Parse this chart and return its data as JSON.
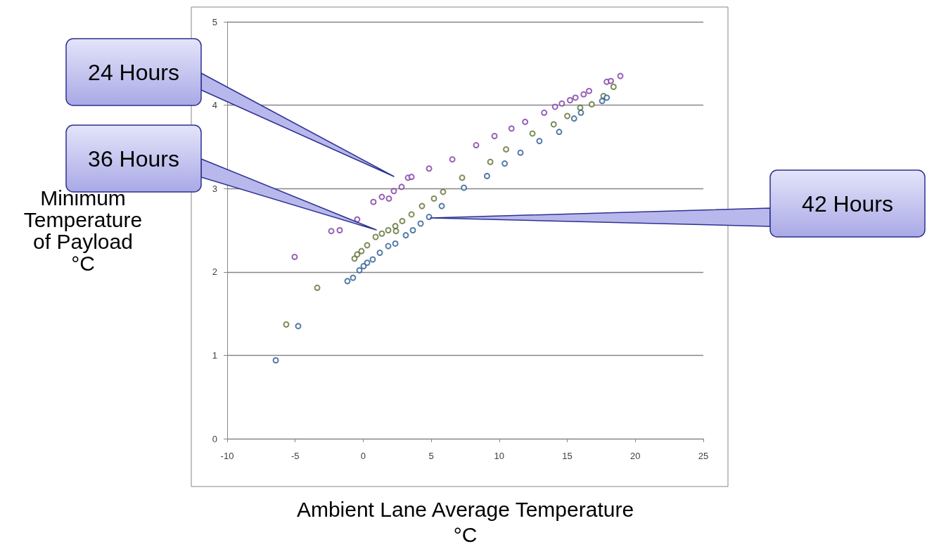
{
  "chart_data": {
    "type": "scatter",
    "xlabel": "Ambient Lane Average Temperature\n°C",
    "ylabel": "Minimum\nTemperature\nof Payload\n°C",
    "xlim": [
      -10,
      25
    ],
    "xticks": [
      -10,
      -5,
      0,
      5,
      10,
      15,
      20,
      25
    ],
    "ylim": [
      0,
      5
    ],
    "yticks": [
      0,
      1,
      2,
      3,
      4,
      5
    ],
    "grid": "y",
    "marker": "circle",
    "series": [
      {
        "color": "#7d3aa6",
        "x": [
          -5.04,
          -2.35,
          -1.73,
          -0.44,
          0.75,
          1.37,
          1.89,
          2.25,
          2.82,
          3.29,
          3.55,
          4.84,
          6.55,
          8.3,
          9.65,
          10.9,
          11.9,
          13.3,
          14.1,
          14.6,
          15.2,
          15.6,
          16.2,
          16.6,
          17.9,
          18.2,
          18.9
        ],
        "values": [
          2.18,
          2.49,
          2.5,
          2.63,
          2.84,
          2.9,
          2.88,
          2.97,
          3.02,
          3.13,
          3.14,
          3.24,
          3.35,
          3.52,
          3.63,
          3.72,
          3.8,
          3.91,
          3.98,
          4.02,
          4.06,
          4.09,
          4.13,
          4.17,
          4.28,
          4.29,
          4.35
        ]
      },
      {
        "color": "#5c7030",
        "x": [
          -5.66,
          -3.38,
          -0.64,
          -0.44,
          -0.13,
          0.29,
          0.91,
          1.37,
          1.84,
          2.36,
          2.41,
          2.87,
          3.55,
          4.32,
          5.2,
          5.87,
          7.27,
          9.34,
          10.5,
          12.44,
          14.0,
          15.0,
          15.95,
          16.8,
          17.66,
          18.4
        ],
        "values": [
          1.37,
          1.81,
          2.16,
          2.21,
          2.25,
          2.32,
          2.42,
          2.46,
          2.5,
          2.55,
          2.49,
          2.61,
          2.69,
          2.79,
          2.88,
          2.96,
          3.13,
          3.32,
          3.47,
          3.66,
          3.77,
          3.87,
          3.97,
          4.01,
          4.11,
          4.22
        ]
      },
      {
        "color": "#2b5b92",
        "x": [
          -6.43,
          -4.78,
          -1.16,
          -0.75,
          -0.28,
          0.03,
          0.29,
          0.7,
          1.22,
          1.84,
          2.36,
          3.13,
          3.65,
          4.22,
          4.84,
          5.77,
          7.4,
          9.1,
          10.4,
          11.56,
          12.95,
          14.4,
          15.5,
          16.0,
          17.56,
          17.9
        ],
        "values": [
          0.94,
          1.35,
          1.89,
          1.93,
          2.02,
          2.07,
          2.11,
          2.15,
          2.23,
          2.31,
          2.34,
          2.44,
          2.5,
          2.58,
          2.66,
          2.79,
          3.01,
          3.15,
          3.3,
          3.43,
          3.57,
          3.68,
          3.84,
          3.91,
          4.05,
          4.09
        ]
      }
    ],
    "annotations": [
      "24 Hours",
      "36 Hours",
      "42 Hours"
    ]
  }
}
